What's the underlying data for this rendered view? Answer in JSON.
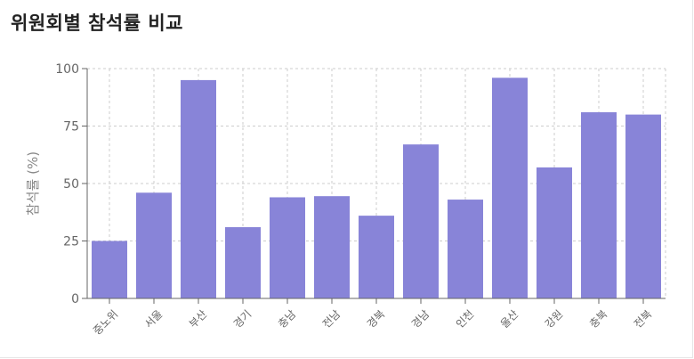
{
  "title": "위원회별 참석률 비교",
  "chart_data": {
    "type": "bar",
    "title": "위원회별 참석률 비교",
    "xlabel": "",
    "ylabel": "참석률 (%)",
    "categories": [
      "중노위",
      "서울",
      "부산",
      "경기",
      "충남",
      "전남",
      "경북",
      "경남",
      "인천",
      "울산",
      "강원",
      "충북",
      "전북"
    ],
    "values": [
      25,
      46,
      95,
      31,
      44,
      44.5,
      36,
      67,
      43,
      96,
      57,
      81,
      80
    ],
    "ylim": [
      0,
      100
    ],
    "yticks": [
      0,
      25,
      50,
      75,
      100
    ],
    "grid": true,
    "bar_color": "#8884d8",
    "axis_color": "#666666",
    "grid_color": "#cccccc"
  }
}
